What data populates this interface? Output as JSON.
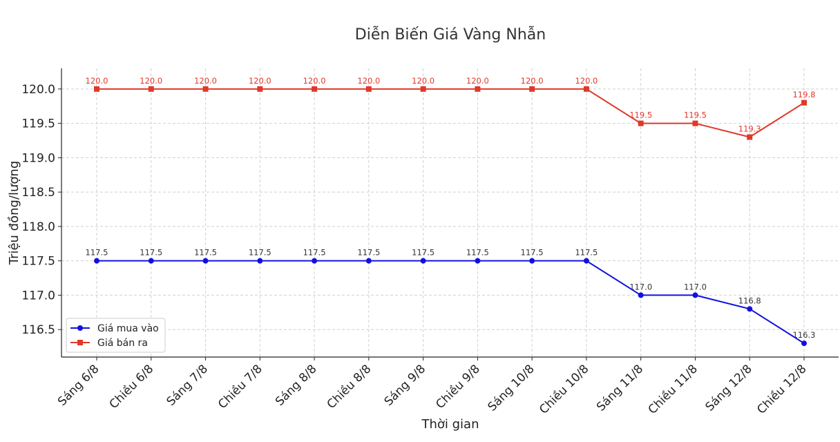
{
  "chart_data": {
    "type": "line",
    "title": "Diễn Biến Giá Vàng Nhẫn",
    "xlabel": "Thời gian",
    "ylabel": "Triệu đồng/lượng",
    "categories": [
      "Sáng 6/8",
      "Chiều 6/8",
      "Sáng 7/8",
      "Chiều 7/8",
      "Sáng 8/8",
      "Chiều 8/8",
      "Sáng 9/8",
      "Chiều 9/8",
      "Sáng 10/8",
      "Chiều 10/8",
      "Sáng 11/8",
      "Chiều 11/8",
      "Sáng 12/8",
      "Chiều 12/8"
    ],
    "ylim": [
      116.1,
      120.3
    ],
    "yticks": [
      "120.0",
      "119.5",
      "119.0",
      "118.5",
      "118.0",
      "117.5",
      "117.0",
      "116.5"
    ],
    "grid": true,
    "legend_position": "bottom-left",
    "series": [
      {
        "name": "Giá mua vào",
        "color": "#1010e0",
        "marker": "circle",
        "values": [
          117.5,
          117.5,
          117.5,
          117.5,
          117.5,
          117.5,
          117.5,
          117.5,
          117.5,
          117.5,
          117.0,
          117.0,
          116.8,
          116.3
        ],
        "labels": [
          "117.5",
          "117.5",
          "117.5",
          "117.5",
          "117.5",
          "117.5",
          "117.5",
          "117.5",
          "117.5",
          "117.5",
          "117.0",
          "117.0",
          "116.8",
          "116.3"
        ]
      },
      {
        "name": "Giá bán ra",
        "color": "#e0382a",
        "marker": "square",
        "values": [
          120.0,
          120.0,
          120.0,
          120.0,
          120.0,
          120.0,
          120.0,
          120.0,
          120.0,
          120.0,
          119.5,
          119.5,
          119.3,
          119.8
        ],
        "labels": [
          "120.0",
          "120.0",
          "120.0",
          "120.0",
          "120.0",
          "120.0",
          "120.0",
          "120.0",
          "120.0",
          "120.0",
          "119.5",
          "119.5",
          "119.3",
          "119.8"
        ]
      }
    ]
  }
}
